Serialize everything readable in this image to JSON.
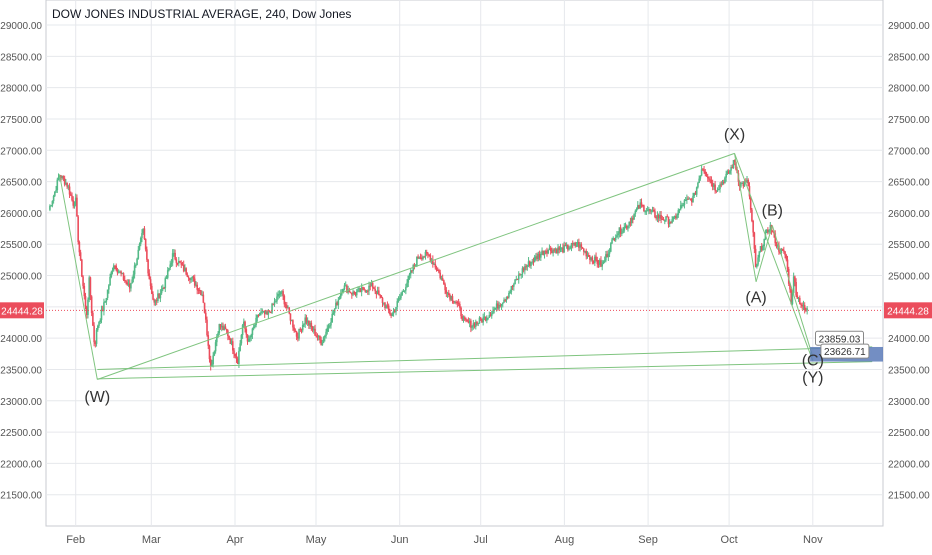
{
  "title": "DOW JONES INDUSTRIAL AVERAGE, 240, Dow Jones",
  "colors": {
    "up": "#53b987",
    "down": "#eb4d5c",
    "grid": "#e6e8ec",
    "trendline": "#7fc47f",
    "target_box": "#5a7ab8",
    "price_line": "#eb4d5c",
    "text": "#555555"
  },
  "chart_data": {
    "type": "candlestick",
    "title": "DOW JONES INDUSTRIAL AVERAGE, 240, Dow Jones",
    "ylim": [
      21000,
      29400
    ],
    "y_ticks": [
      "29000.00",
      "28500.00",
      "28000.00",
      "27500.00",
      "27000.00",
      "26500.00",
      "26000.00",
      "25500.00",
      "25000.00",
      "24500.00",
      "24000.00",
      "23500.00",
      "23000.00",
      "22500.00",
      "22000.00",
      "21500.00"
    ],
    "x_ticks": [
      "Feb",
      "Mar",
      "Apr",
      "May",
      "Jun",
      "Jul",
      "Aug",
      "Sep",
      "Oct",
      "Nov"
    ],
    "x_range": [
      "2018-01-21",
      "2018-11-27"
    ],
    "last_price": "24444.28",
    "target_labels": [
      "23859.03",
      "23626.71"
    ],
    "wave_labels": [
      {
        "text": "(W)",
        "date": "2018-02-09",
        "price": 22980
      },
      {
        "text": "(X)",
        "date": "2018-10-03",
        "price": 27170
      },
      {
        "text": "(A)",
        "date": "2018-10-11",
        "price": 24570
      },
      {
        "text": "(B)",
        "date": "2018-10-17",
        "price": 25960
      },
      {
        "text": "(C)",
        "date": "2018-11-01",
        "price": 23560
      },
      {
        "text": "(Y)",
        "date": "2018-11-01",
        "price": 23290
      }
    ],
    "path": [
      [
        "2018-01-22",
        26050
      ],
      [
        "2018-01-24",
        26300
      ],
      [
        "2018-01-26",
        26616
      ],
      [
        "2018-01-29",
        26440
      ],
      [
        "2018-01-31",
        26150
      ],
      [
        "2018-02-01",
        26190
      ],
      [
        "2018-02-02",
        25520
      ],
      [
        "2018-02-05",
        24345
      ],
      [
        "2018-02-06",
        24912
      ],
      [
        "2018-02-08",
        23860
      ],
      [
        "2018-02-09",
        24190
      ],
      [
        "2018-02-12",
        24600
      ],
      [
        "2018-02-15",
        25200
      ],
      [
        "2018-02-21",
        24800
      ],
      [
        "2018-02-26",
        25709
      ],
      [
        "2018-02-28",
        25030
      ],
      [
        "2018-03-02",
        24538
      ],
      [
        "2018-03-06",
        24870
      ],
      [
        "2018-03-09",
        25335
      ],
      [
        "2018-03-13",
        25100
      ],
      [
        "2018-03-16",
        24950
      ],
      [
        "2018-03-20",
        24700
      ],
      [
        "2018-03-22",
        23957
      ],
      [
        "2018-03-23",
        23533
      ],
      [
        "2018-03-26",
        24200
      ],
      [
        "2018-03-29",
        24103
      ],
      [
        "2018-04-02",
        23644
      ],
      [
        "2018-04-04",
        24260
      ],
      [
        "2018-04-06",
        23932
      ],
      [
        "2018-04-10",
        24408
      ],
      [
        "2018-04-13",
        24360
      ],
      [
        "2018-04-18",
        24748
      ],
      [
        "2018-04-24",
        24024
      ],
      [
        "2018-04-27",
        24311
      ],
      [
        "2018-05-03",
        23930
      ],
      [
        "2018-05-07",
        24357
      ],
      [
        "2018-05-11",
        24831
      ],
      [
        "2018-05-15",
        24706
      ],
      [
        "2018-05-22",
        24834
      ],
      [
        "2018-05-29",
        24361
      ],
      [
        "2018-06-01",
        24635
      ],
      [
        "2018-06-08",
        25317
      ],
      [
        "2018-06-12",
        25320
      ],
      [
        "2018-06-15",
        25090
      ],
      [
        "2018-06-19",
        24700
      ],
      [
        "2018-06-22",
        24580
      ],
      [
        "2018-06-25",
        24252
      ],
      [
        "2018-06-28",
        24216
      ],
      [
        "2018-07-02",
        24307
      ],
      [
        "2018-07-06",
        24456
      ],
      [
        "2018-07-11",
        24700
      ],
      [
        "2018-07-17",
        25120
      ],
      [
        "2018-07-25",
        25414
      ],
      [
        "2018-07-31",
        25415
      ],
      [
        "2018-08-06",
        25502
      ],
      [
        "2018-08-10",
        25313
      ],
      [
        "2018-08-15",
        25162
      ],
      [
        "2018-08-20",
        25669
      ],
      [
        "2018-08-24",
        25790
      ],
      [
        "2018-08-29",
        26124
      ],
      [
        "2018-09-04",
        25952
      ],
      [
        "2018-09-10",
        25857
      ],
      [
        "2018-09-14",
        26154
      ],
      [
        "2018-09-18",
        26246
      ],
      [
        "2018-09-21",
        26743
      ],
      [
        "2018-09-26",
        26385
      ],
      [
        "2018-09-28",
        26458
      ],
      [
        "2018-10-01",
        26651
      ],
      [
        "2018-10-03",
        26828
      ],
      [
        "2018-10-05",
        26447
      ],
      [
        "2018-10-08",
        26486
      ],
      [
        "2018-10-10",
        25598
      ],
      [
        "2018-10-11",
        25052
      ],
      [
        "2018-10-12",
        25340
      ],
      [
        "2018-10-16",
        25798
      ],
      [
        "2018-10-17",
        25706
      ],
      [
        "2018-10-19",
        25444
      ],
      [
        "2018-10-22",
        25317
      ],
      [
        "2018-10-24",
        24583
      ],
      [
        "2018-10-25",
        24984
      ],
      [
        "2018-10-26",
        24688
      ],
      [
        "2018-10-29",
        24442
      ],
      [
        "2018-10-30",
        24444
      ]
    ]
  }
}
